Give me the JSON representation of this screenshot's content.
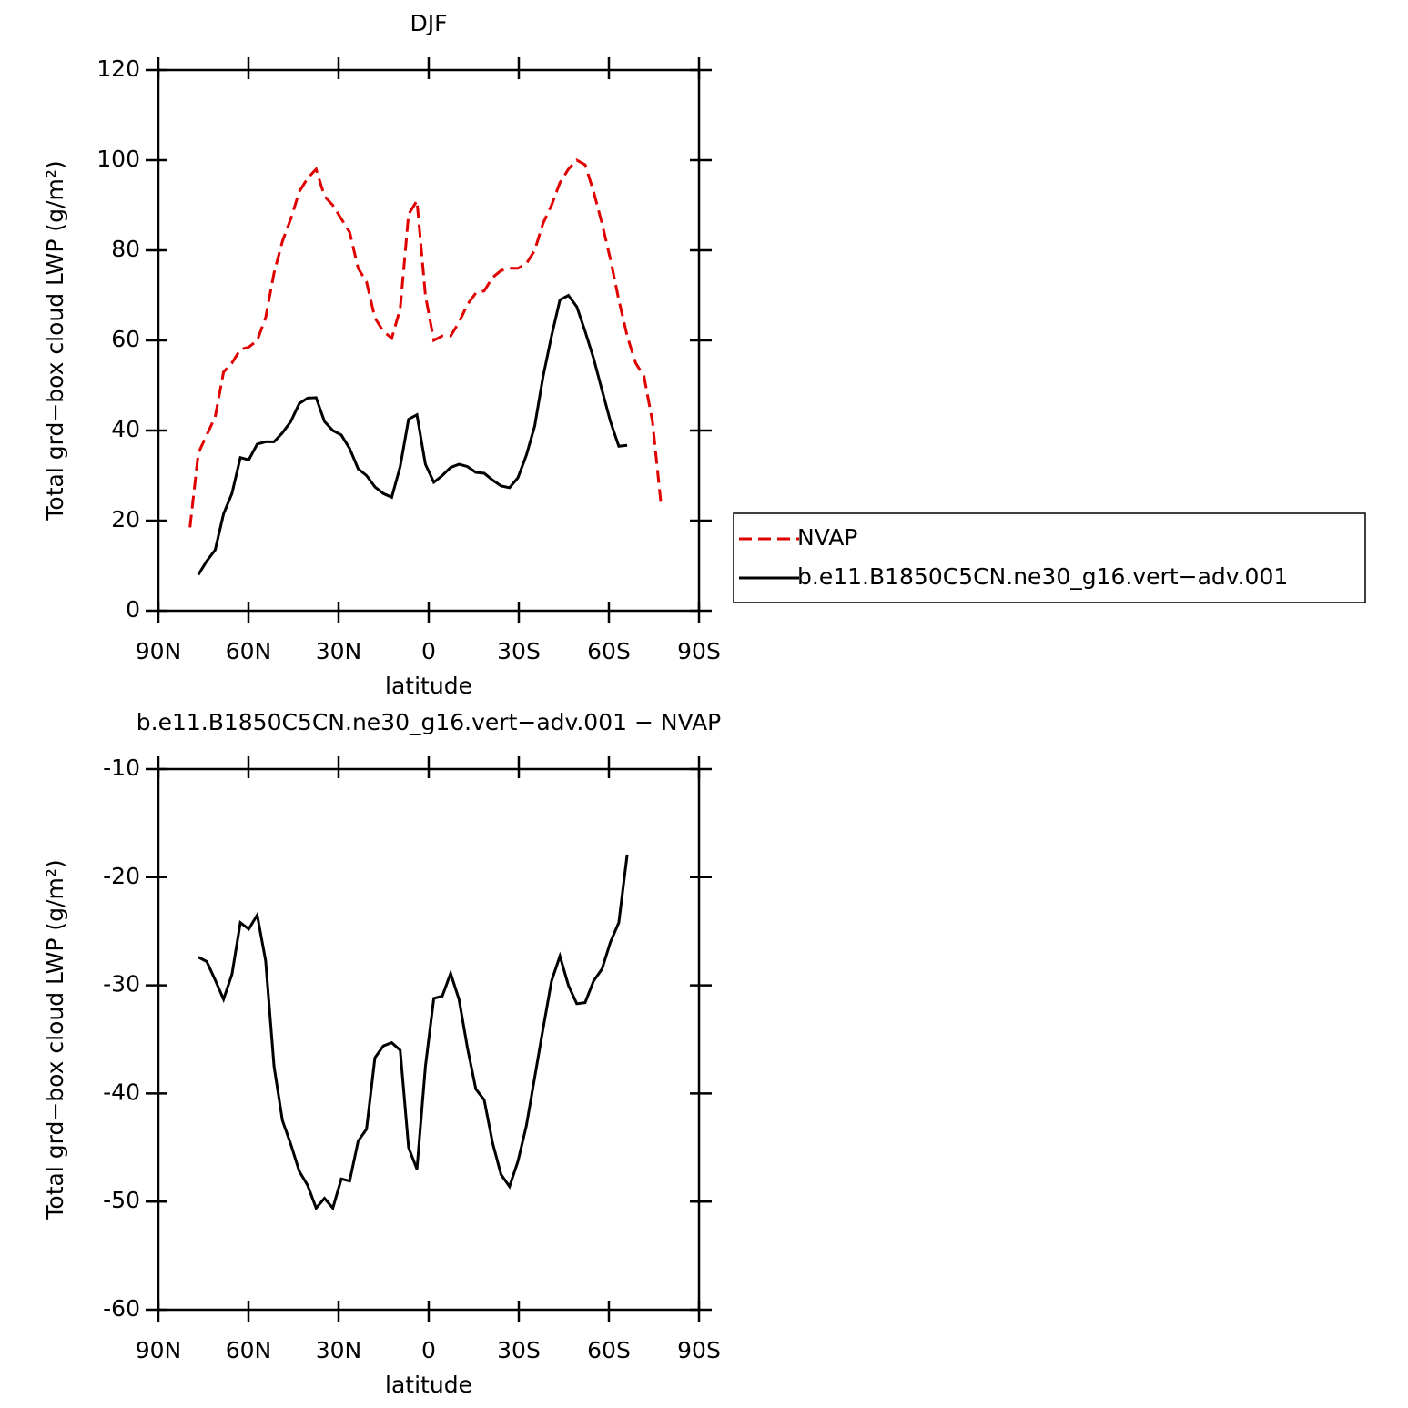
{
  "chart_data": [
    {
      "type": "line",
      "title": "DJF",
      "xlabel": "latitude",
      "ylabel": "Total grd−box cloud LWP (g/m²)",
      "x": [
        79.5,
        76.7,
        73.9,
        71.1,
        68.3,
        65.5,
        62.7,
        59.9,
        57.1,
        54.3,
        51.5,
        48.7,
        45.9,
        43.1,
        40.3,
        37.5,
        34.7,
        31.9,
        29.1,
        26.3,
        23.5,
        20.7,
        17.9,
        15.1,
        12.3,
        9.5,
        6.7,
        3.9,
        1.1,
        -1.7,
        -4.5,
        -7.3,
        -10.1,
        -12.9,
        -15.7,
        -18.5,
        -21.3,
        -24.1,
        -26.9,
        -29.7,
        -32.5,
        -35.3,
        -38.1,
        -40.9,
        -43.7,
        -46.5,
        -49.3,
        -52.1,
        -54.9,
        -57.7,
        -60.5,
        -63.3,
        -66.1,
        -68.9,
        -71.7,
        -74.5,
        -77.3
      ],
      "series": [
        {
          "name": "NVAP",
          "color": "#e00000",
          "linestyle": "dashed",
          "values": [
            18.5,
            35,
            39,
            43,
            53,
            55,
            58,
            58.5,
            60,
            65,
            75,
            82,
            87,
            93,
            96,
            98,
            92,
            90,
            87,
            84,
            76,
            73,
            65,
            62,
            60.5,
            67,
            88,
            91,
            70,
            60,
            61,
            61,
            64,
            68,
            70.5,
            71,
            74,
            75.5,
            76,
            76,
            77,
            80,
            86,
            90,
            95,
            98,
            100,
            99,
            93,
            86,
            78,
            69,
            61,
            55,
            52,
            42,
            24
          ]
        },
        {
          "name": "b.e11.B1850C5CN.ne30_g16.vert−adv.001",
          "color": "#000000",
          "linestyle": "solid",
          "values": [
            null,
            8,
            11,
            13.5,
            21.5,
            26,
            34,
            33.5,
            37,
            37.5,
            37.5,
            39.5,
            42,
            46,
            47.2,
            47.3,
            42,
            40,
            39,
            36,
            31.5,
            30,
            27.5,
            26,
            25.2,
            32,
            42.5,
            43.5,
            32.5,
            28.5,
            30,
            31.8,
            32.5,
            32,
            30.7,
            30.5,
            29,
            27.7,
            27.3,
            29.5,
            34.5,
            41,
            52,
            61,
            69,
            70,
            67.5,
            62,
            56,
            49,
            42,
            36.5,
            36.7,
            null,
            null,
            null,
            null
          ]
        }
      ],
      "xlim": [
        90,
        -90
      ],
      "xticks": [
        {
          "value": 90,
          "label": "90N"
        },
        {
          "value": 60,
          "label": "60N"
        },
        {
          "value": 30,
          "label": "30N"
        },
        0,
        {
          "value": -30,
          "label": "30S"
        },
        {
          "value": -60,
          "label": "60S"
        },
        {
          "value": -90,
          "label": "90S"
        }
      ],
      "ylim": [
        0,
        120
      ],
      "yticks": [
        0,
        20,
        40,
        60,
        80,
        100,
        120
      ],
      "legend": "right"
    },
    {
      "type": "line",
      "title": "b.e11.B1850C5CN.ne30_g16.vert−adv.001 − NVAP",
      "xlabel": "latitude",
      "ylabel": "Total grd−box cloud LWP (g/m²)",
      "x": [
        79.5,
        76.7,
        73.9,
        71.1,
        68.3,
        65.5,
        62.7,
        59.9,
        57.1,
        54.3,
        51.5,
        48.7,
        45.9,
        43.1,
        40.3,
        37.5,
        34.7,
        31.9,
        29.1,
        26.3,
        23.5,
        20.7,
        17.9,
        15.1,
        12.3,
        9.5,
        6.7,
        3.9,
        1.1,
        -1.7,
        -4.5,
        -7.3,
        -10.1,
        -12.9,
        -15.7,
        -18.5,
        -21.3,
        -24.1,
        -26.9,
        -29.7,
        -32.5,
        -35.3,
        -38.1,
        -40.9,
        -43.7,
        -46.5,
        -49.3,
        -52.1,
        -54.9,
        -57.7,
        -60.5,
        -63.3,
        -66.1,
        -68.9,
        -71.7,
        -74.5,
        -77.3
      ],
      "values": [
        null,
        -27.4,
        -27.8,
        -29.5,
        -31.3,
        -29,
        -24.2,
        -24.8,
        -23.5,
        -27.7,
        -37.5,
        -42.5,
        -44.7,
        -47.2,
        -48.5,
        -50.6,
        -49.7,
        -50.6,
        -47.9,
        -48.1,
        -44.4,
        -43.3,
        -36.7,
        -35.6,
        -35.3,
        -36,
        -45,
        -47,
        -37.5,
        -31.2,
        -31,
        -28.9,
        -31.3,
        -35.8,
        -39.6,
        -40.6,
        -44.6,
        -47.5,
        -48.6,
        -46.3,
        -43,
        -38.5,
        -34,
        -29.6,
        -27.3,
        -30,
        -31.7,
        -31.6,
        -29.6,
        -28.5,
        -26,
        -24.2,
        -17.9,
        null,
        null,
        null,
        null
      ],
      "color": "#000000",
      "xlim": [
        90,
        -90
      ],
      "xticks": [
        {
          "value": 90,
          "label": "90N"
        },
        {
          "value": 60,
          "label": "60N"
        },
        {
          "value": 30,
          "label": "30N"
        },
        0,
        {
          "value": -30,
          "label": "30S"
        },
        {
          "value": -60,
          "label": "60S"
        },
        {
          "value": -90,
          "label": "90S"
        }
      ],
      "ylim": [
        -60,
        -10
      ],
      "yticks": [
        -60,
        -50,
        -40,
        -30,
        -20,
        -10
      ]
    }
  ]
}
